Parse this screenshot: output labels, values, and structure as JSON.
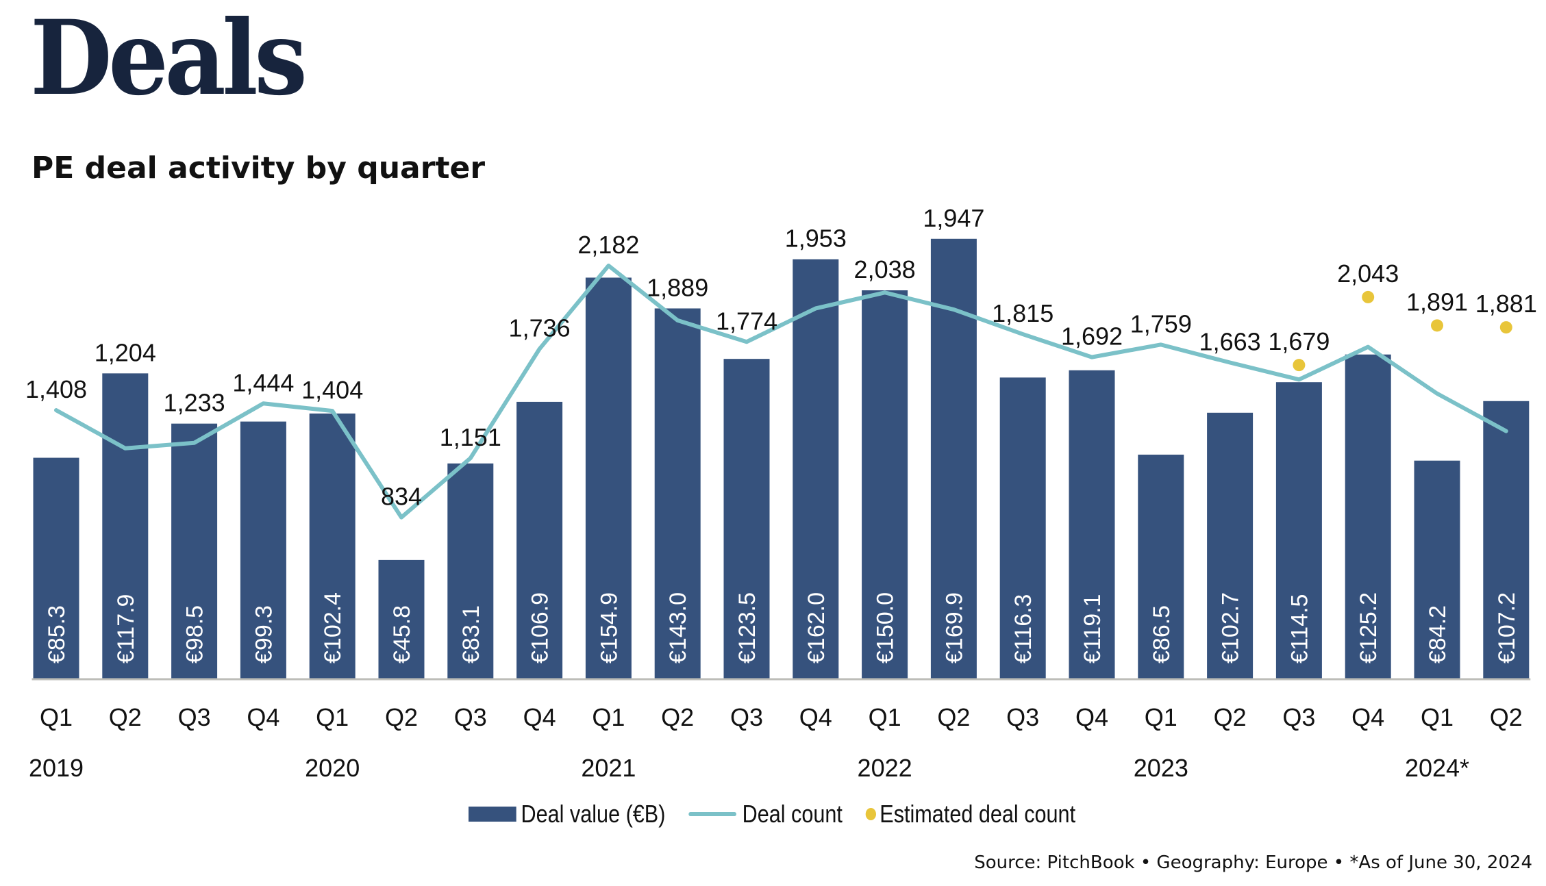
{
  "header": {
    "title": "Deals",
    "subtitle": "PE deal activity by quarter"
  },
  "colors": {
    "title": "#17243d",
    "bar": "#36527d",
    "line": "#7bc1c8",
    "estimate_dot": "#e8c53a",
    "baseline": "#bdbdb8"
  },
  "legend": {
    "items": [
      {
        "label": "Deal value (€B)",
        "type": "bar"
      },
      {
        "label": "Deal count",
        "type": "line"
      },
      {
        "label": "Estimated deal count",
        "type": "dot"
      }
    ]
  },
  "footer": {
    "source": "Source: PitchBook  •  Geography: Europe  •  *As of June 30, 2024"
  },
  "chart_data": {
    "type": "bar",
    "title": "PE deal activity by quarter",
    "xlabel": "",
    "ylabel": "",
    "grid": false,
    "legend_position": "bottom",
    "categories": [
      "Q1",
      "Q2",
      "Q3",
      "Q4",
      "Q1",
      "Q2",
      "Q3",
      "Q4",
      "Q1",
      "Q2",
      "Q3",
      "Q4",
      "Q1",
      "Q2",
      "Q3",
      "Q4",
      "Q1",
      "Q2",
      "Q3",
      "Q4",
      "Q1",
      "Q2"
    ],
    "years": [
      {
        "label": "2019",
        "index": 0
      },
      {
        "label": "2020",
        "index": 4
      },
      {
        "label": "2021",
        "index": 8
      },
      {
        "label": "2022",
        "index": 12
      },
      {
        "label": "2023",
        "index": 16
      },
      {
        "label": "2024*",
        "index": 20
      }
    ],
    "series": [
      {
        "name": "Deal value (€B)",
        "type": "bar",
        "values": [
          85.3,
          117.9,
          98.5,
          99.3,
          102.4,
          45.8,
          83.1,
          106.9,
          154.9,
          143.0,
          123.5,
          162.0,
          150.0,
          169.9,
          116.3,
          119.1,
          86.5,
          102.7,
          114.5,
          125.2,
          84.2,
          107.2
        ],
        "labels": [
          "€85.3",
          "€117.9",
          "€98.5",
          "€99.3",
          "€102.4",
          "€45.8",
          "€83.1",
          "€106.9",
          "€154.9",
          "€143.0",
          "€123.5",
          "€162.0",
          "€150.0",
          "€169.9",
          "€116.3",
          "€119.1",
          "€86.5",
          "€102.7",
          "€114.5",
          "€125.2",
          "€84.2",
          "€107.2"
        ]
      },
      {
        "name": "Deal count",
        "type": "line",
        "values": [
          1408,
          1204,
          1233,
          1444,
          1404,
          834,
          1151,
          1736,
          2182,
          1889,
          1774,
          1953,
          2038,
          1947,
          1815,
          1692,
          1759,
          1663,
          1572,
          1747,
          1497,
          1296
        ],
        "labels": [
          "1,408",
          "1,204",
          "1,233",
          "1,444",
          "1,404",
          "834",
          "1,151",
          "1,736",
          "2,182",
          "1,889",
          "1,774",
          "1,953",
          "2,038",
          "1,947",
          "1,815",
          "1,692",
          "1,759",
          "1,663",
          "",
          "",
          "",
          ""
        ]
      },
      {
        "name": "Estimated deal count",
        "type": "scatter",
        "values": [
          null,
          null,
          null,
          null,
          null,
          null,
          null,
          null,
          null,
          null,
          null,
          null,
          null,
          null,
          null,
          null,
          null,
          null,
          1679,
          2043,
          1891,
          1881
        ],
        "labels": [
          "",
          "",
          "",
          "",
          "",
          "",
          "",
          "",
          "",
          "",
          "",
          "",
          "",
          "",
          "",
          "",
          "",
          "",
          "1,679",
          "2,043",
          "1,891",
          "1,881"
        ]
      }
    ],
    "bar_ylim": [
      0,
      170
    ],
    "count_ylim": [
      0,
      2200
    ]
  }
}
